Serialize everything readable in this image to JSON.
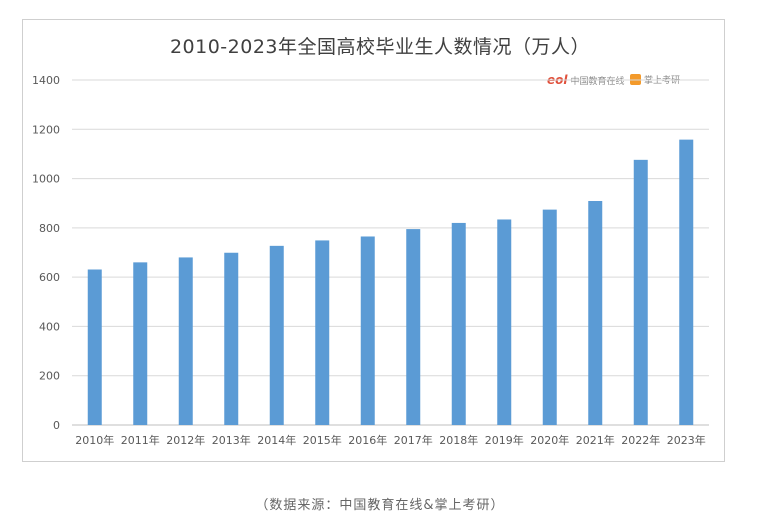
{
  "chart_data": {
    "type": "bar",
    "title": "2010-2023年全国高校毕业生人数情况（万人）",
    "categories": [
      "2010年",
      "2011年",
      "2012年",
      "2013年",
      "2014年",
      "2015年",
      "2016年",
      "2017年",
      "2018年",
      "2019年",
      "2020年",
      "2021年",
      "2022年",
      "2023年"
    ],
    "values": [
      631,
      660,
      680,
      699,
      727,
      749,
      765,
      795,
      820,
      834,
      874,
      909,
      1076,
      1158
    ],
    "ylim": [
      0,
      1400
    ],
    "yticks": [
      0,
      200,
      400,
      600,
      800,
      1000,
      1200,
      1400
    ],
    "grid": true,
    "bar_color": "#5b9bd5",
    "grid_color": "#d9d9d9"
  },
  "logos": {
    "eol_mark": "eol",
    "eol_text": "中国教育在线",
    "zs_text": "掌上考研"
  },
  "source": "（数据来源：中国教育在线&掌上考研）"
}
